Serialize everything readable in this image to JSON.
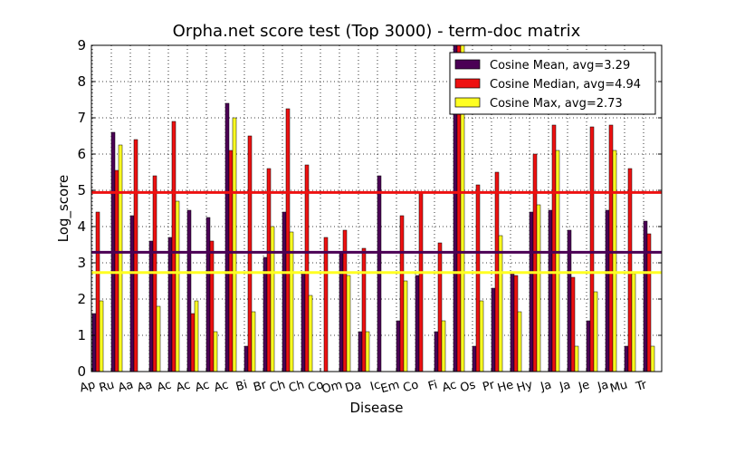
{
  "chart_data": {
    "type": "bar",
    "title": "Orpha.net score test (Top 3000) - term-doc matrix",
    "xlabel": "Disease",
    "ylabel": "Log_score",
    "ylim": [
      0,
      9
    ],
    "yticks": [
      "0",
      "1",
      "2",
      "3",
      "4",
      "5",
      "6",
      "7",
      "8",
      "9"
    ],
    "grid": true,
    "legend_position": "top-right",
    "categories": [
      "Ap",
      "Ru",
      "Aa",
      "Aa",
      "Ac",
      "Ac",
      "Ac",
      "Ac",
      "Bi",
      "Br",
      "Ch",
      "Ch",
      "Co",
      "Om",
      "Da",
      "Ic",
      "Em",
      "Co",
      "Fi",
      "Ac",
      "Os",
      "Pr",
      "He",
      "Hy",
      "Ja",
      "Ja",
      "Je",
      "Ja",
      "Mu",
      "Tr"
    ],
    "series": [
      {
        "name": "Cosine Mean, avg=3.29",
        "color": "#4b0055",
        "values": [
          1.6,
          6.6,
          4.3,
          3.6,
          3.7,
          4.45,
          4.25,
          7.4,
          0.7,
          3.15,
          4.4,
          2.7,
          0,
          3.3,
          1.1,
          5.4,
          1.4,
          2.65,
          1.1,
          9.0,
          0.7,
          2.3,
          2.7,
          4.4,
          4.45,
          3.9,
          1.4,
          4.45,
          0.7,
          4.15
        ]
      },
      {
        "name": "Cosine Median, avg=4.94",
        "color": "#ee1111",
        "values": [
          4.4,
          5.55,
          6.4,
          5.4,
          6.9,
          1.6,
          3.6,
          6.1,
          6.5,
          5.6,
          7.25,
          5.7,
          3.7,
          3.9,
          3.4,
          0,
          4.3,
          4.95,
          3.55,
          9.0,
          5.15,
          5.5,
          2.65,
          6.0,
          6.8,
          2.6,
          6.75,
          6.8,
          5.6,
          3.8
        ]
      },
      {
        "name": "Cosine Max, avg=2.73",
        "color": "#ffff22",
        "values": [
          1.95,
          6.25,
          0,
          1.8,
          4.7,
          1.95,
          1.1,
          7.0,
          1.65,
          4.0,
          3.85,
          2.1,
          0,
          2.65,
          1.1,
          0,
          2.5,
          0,
          1.4,
          9.0,
          1.95,
          3.75,
          1.65,
          4.6,
          6.1,
          0.7,
          2.2,
          6.1,
          2.7,
          0.7
        ]
      }
    ],
    "hlines": [
      {
        "value": 3.29,
        "color": "#4b0055"
      },
      {
        "value": 4.94,
        "color": "#ee1111"
      },
      {
        "value": 2.73,
        "color": "#ffff22"
      }
    ]
  }
}
